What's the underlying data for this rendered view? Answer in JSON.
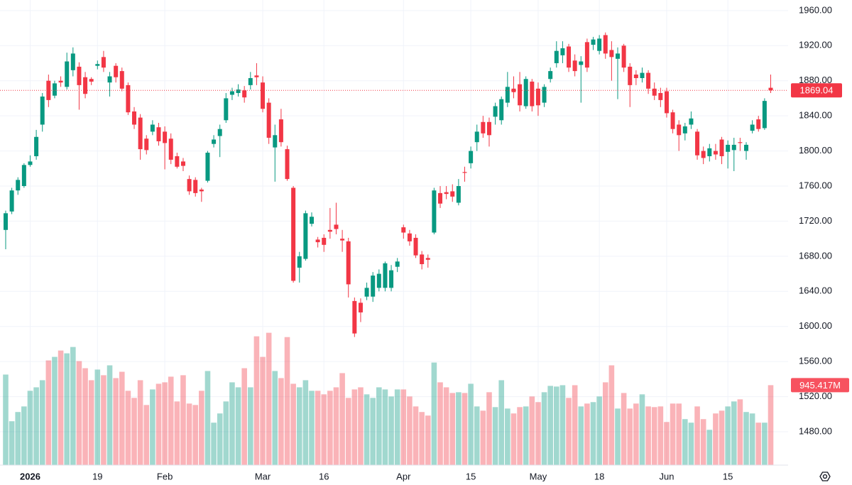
{
  "chart_data": {
    "type": "candlestick",
    "categories": [
      null,
      null,
      null,
      null,
      "2026",
      null,
      null,
      null,
      null,
      null,
      null,
      null,
      null,
      null,
      null,
      "19",
      null,
      null,
      null,
      null,
      null,
      null,
      null,
      null,
      null,
      null,
      "Feb",
      null,
      null,
      null,
      null,
      null,
      null,
      null,
      null,
      null,
      null,
      null,
      null,
      null,
      null,
      null,
      "Mar",
      null,
      null,
      null,
      null,
      null,
      null,
      null,
      null,
      null,
      "16",
      null,
      null,
      null,
      null,
      null,
      null,
      null,
      null,
      null,
      null,
      null,
      null,
      "Apr",
      null,
      null,
      null,
      null,
      null,
      null,
      null,
      null,
      null,
      null,
      "15",
      null,
      null,
      null,
      null,
      null,
      null,
      null,
      null,
      null,
      null,
      "May",
      null,
      null,
      null,
      null,
      null,
      null,
      null,
      null,
      null,
      "18",
      null,
      null,
      null,
      null,
      null,
      null,
      null,
      null,
      null,
      null,
      "Jun",
      null,
      null,
      null,
      null,
      null,
      null,
      null,
      null,
      null,
      "15",
      null,
      null,
      null,
      null,
      null,
      null,
      null
    ],
    "open": [
      1710,
      1731,
      1755,
      1760,
      1784,
      1794,
      1830,
      1880,
      1863,
      1880,
      1873,
      1892,
      1896,
      1884,
      1882,
      1897,
      1907,
      1878,
      1897,
      1891,
      1875,
      1845,
      1838,
      1814,
      1822,
      1827,
      1822,
      1814,
      1794,
      1788,
      1768,
      1767,
      1756,
      1766,
      1808,
      1817,
      1835,
      1864,
      1866,
      1869,
      1875,
      1886,
      1878,
      1855,
      1804,
      1836,
      1802,
      1758,
      1667,
      1677,
      1717,
      1699,
      1701,
      1710,
      1716,
      1700,
      1697,
      1629,
      1627,
      1634,
      1634,
      1644,
      1644,
      1644,
      1668,
      1713,
      1706,
      1701,
      1682,
      1678,
      1707,
      1752,
      1753,
      1754,
      1741,
      1776,
      1786,
      1810,
      1833,
      1833,
      1839,
      1835,
      1855,
      1871,
      1876,
      1851,
      1879,
      1871,
      1855,
      1882,
      1900,
      1909,
      1919,
      1903,
      1898,
      1924,
      1921,
      1914,
      1932,
      1915,
      1905,
      1920,
      1896,
      1887,
      1883,
      1889,
      1871,
      1866,
      1868,
      1844,
      1830,
      1820,
      1830,
      1822,
      1800,
      1794,
      1800,
      1813,
      1799,
      1801,
      1810,
      1800,
      1823,
      1836,
      1826,
      1872
    ],
    "high": [
      1732,
      1758,
      1770,
      1786,
      1795,
      1824,
      1866,
      1887,
      1880,
      1885,
      1912,
      1918,
      1901,
      1890,
      1884,
      1903,
      1914,
      1890,
      1900,
      1895,
      1878,
      1850,
      1842,
      1818,
      1835,
      1832,
      1828,
      1820,
      1798,
      1792,
      1772,
      1770,
      1758,
      1800,
      1818,
      1830,
      1866,
      1872,
      1876,
      1874,
      1890,
      1900,
      1885,
      1860,
      1830,
      1848,
      1806,
      1760,
      1685,
      1732,
      1730,
      1702,
      1705,
      1735,
      1741,
      1710,
      1701,
      1633,
      1632,
      1650,
      1662,
      1665,
      1674,
      1670,
      1678,
      1716,
      1710,
      1705,
      1686,
      1682,
      1758,
      1760,
      1760,
      1762,
      1768,
      1782,
      1805,
      1830,
      1840,
      1838,
      1855,
      1862,
      1890,
      1885,
      1890,
      1885,
      1882,
      1878,
      1876,
      1895,
      1925,
      1925,
      1922,
      1910,
      1908,
      1928,
      1930,
      1932,
      1935,
      1925,
      1918,
      1922,
      1900,
      1892,
      1895,
      1892,
      1878,
      1872,
      1872,
      1847,
      1835,
      1832,
      1845,
      1825,
      1805,
      1808,
      1808,
      1816,
      1812,
      1815,
      1815,
      1810,
      1835,
      1840,
      1860,
      1887
    ],
    "low": [
      1688,
      1728,
      1750,
      1758,
      1782,
      1790,
      1822,
      1850,
      1860,
      1873,
      1870,
      1885,
      1847,
      1860,
      1875,
      1893,
      1890,
      1862,
      1878,
      1868,
      1841,
      1825,
      1790,
      1796,
      1818,
      1806,
      1779,
      1785,
      1780,
      1777,
      1750,
      1748,
      1742,
      1764,
      1804,
      1793,
      1832,
      1858,
      1862,
      1855,
      1870,
      1875,
      1844,
      1808,
      1765,
      1805,
      1766,
      1650,
      1650,
      1675,
      1714,
      1690,
      1685,
      1700,
      1705,
      1685,
      1633,
      1588,
      1605,
      1630,
      1628,
      1640,
      1640,
      1640,
      1662,
      1700,
      1692,
      1678,
      1665,
      1667,
      1705,
      1735,
      1745,
      1742,
      1738,
      1765,
      1780,
      1800,
      1815,
      1805,
      1830,
      1830,
      1850,
      1860,
      1845,
      1848,
      1845,
      1840,
      1850,
      1878,
      1895,
      1900,
      1890,
      1885,
      1855,
      1890,
      1915,
      1910,
      1905,
      1880,
      1859,
      1890,
      1850,
      1875,
      1878,
      1865,
      1858,
      1850,
      1838,
      1820,
      1800,
      1812,
      1825,
      1790,
      1785,
      1788,
      1790,
      1785,
      1780,
      1777,
      1800,
      1790,
      1820,
      1822,
      1824,
      1866
    ],
    "close": [
      1729,
      1755,
      1767,
      1784,
      1788,
      1816,
      1862,
      1858,
      1877,
      1878,
      1902,
      1911,
      1875,
      1865,
      1879,
      1899,
      1895,
      1885,
      1884,
      1871,
      1844,
      1830,
      1802,
      1801,
      1830,
      1811,
      1809,
      1790,
      1782,
      1783,
      1754,
      1752,
      1754,
      1798,
      1813,
      1825,
      1860,
      1868,
      1870,
      1861,
      1883,
      1884,
      1848,
      1815,
      1818,
      1810,
      1768,
      1652,
      1680,
      1729,
      1725,
      1696,
      1693,
      1708,
      1711,
      1698,
      1648,
      1592,
      1616,
      1644,
      1658,
      1660,
      1672,
      1664,
      1674,
      1707,
      1697,
      1681,
      1671,
      1676,
      1755,
      1740,
      1751,
      1748,
      1760,
      1775,
      1800,
      1822,
      1820,
      1818,
      1851,
      1859,
      1873,
      1867,
      1852,
      1882,
      1851,
      1852,
      1873,
      1891,
      1914,
      1917,
      1895,
      1891,
      1902,
      1895,
      1927,
      1928,
      1911,
      1907,
      1911,
      1895,
      1875,
      1883,
      1889,
      1871,
      1863,
      1858,
      1843,
      1825,
      1818,
      1828,
      1837,
      1795,
      1792,
      1803,
      1796,
      1794,
      1807,
      1807,
      1809,
      1807,
      1830,
      1825,
      1857,
      1869.04
    ],
    "volume": [
      1071,
      519,
      628,
      694,
      879,
      920,
      1004,
      1238,
      1280,
      1355,
      1322,
      1397,
      1230,
      1146,
      1004,
      1130,
      1063,
      1180,
      1029,
      1104,
      879,
      795,
      1004,
      711,
      895,
      962,
      979,
      1046,
      753,
      1063,
      728,
      711,
      879,
      1113,
      502,
      611,
      753,
      979,
      920,
      1146,
      920,
      1523,
      1280,
      1565,
      1113,
      1029,
      1514,
      962,
      920,
      1004,
      879,
      879,
      837,
      879,
      920,
      1088,
      795,
      895,
      920,
      837,
      795,
      920,
      895,
      812,
      895,
      895,
      812,
      694,
      628,
      586,
      1213,
      979,
      920,
      853,
      862,
      853,
      962,
      694,
      644,
      862,
      686,
      1004,
      669,
      611,
      686,
      694,
      812,
      745,
      862,
      937,
      929,
      945,
      795,
      945,
      694,
      728,
      745,
      812,
      979,
      1180,
      669,
      853,
      669,
      728,
      837,
      694,
      686,
      694,
      510,
      728,
      728,
      544,
      502,
      694,
      544,
      418,
      611,
      644,
      694,
      753,
      778,
      628,
      611,
      502,
      502,
      945.417
    ],
    "last_volume_label": "945.417M",
    "up_color": "#089981",
    "down_color": "#f23645",
    "volume_up_color": "rgba(8,153,129,0.38)",
    "volume_down_color": "rgba(242,54,69,0.38)",
    "ylim": [
      1442,
      1972
    ],
    "yticks": [
      {
        "value": 1480,
        "label": "1480.00"
      },
      {
        "value": 1520,
        "label": "1520.00"
      },
      {
        "value": 1560,
        "label": "1560.00"
      },
      {
        "value": 1600,
        "label": "1600.00"
      },
      {
        "value": 1640,
        "label": "1640.00"
      },
      {
        "value": 1680,
        "label": "1680.00"
      },
      {
        "value": 1720,
        "label": "1720.00"
      },
      {
        "value": 1760,
        "label": "1760.00"
      },
      {
        "value": 1800,
        "label": "1800.00"
      },
      {
        "value": 1840,
        "label": "1840.00"
      },
      {
        "value": 1880,
        "label": "1880.00"
      },
      {
        "value": 1920,
        "label": "1920.00"
      },
      {
        "value": 1960,
        "label": "1960.00"
      }
    ],
    "volume_ylim": [
      0,
      5500
    ],
    "grid": true
  }
}
